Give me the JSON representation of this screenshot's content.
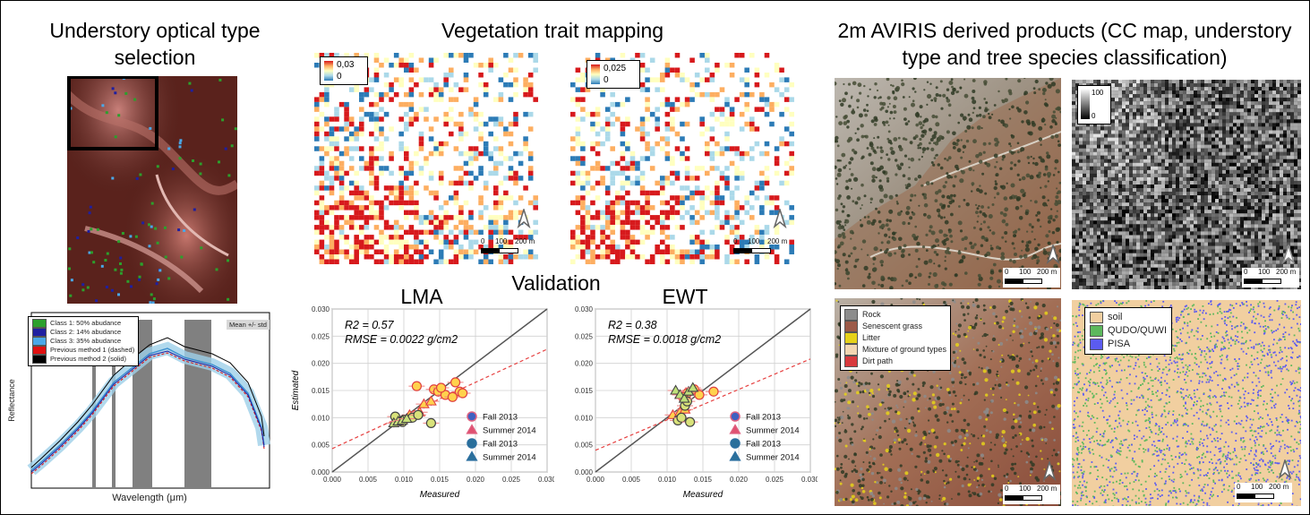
{
  "titles": {
    "understory": "Understory optical type selection",
    "vegetation": "Vegetation trait mapping",
    "aviris": "2m AVIRIS derived products (CC map, understory type and tree species classification)",
    "validation": "Validation"
  },
  "spectral_chart": {
    "legend": [
      {
        "label": "Class 1: 50% abudance",
        "color": "#2ca02c"
      },
      {
        "label": "Class 2: 14% abudance",
        "color": "#1f1fa0"
      },
      {
        "label": "Class 3: 35% abudance",
        "color": "#4aa8e8"
      },
      {
        "label": "Previous method 1 (dashed)",
        "color": "#e01010"
      },
      {
        "label": "Previous method 2 (solid)",
        "color": "#000000"
      }
    ],
    "badge": "Mean +/- std",
    "xlabel": "Wavelength (μm)",
    "ylabel": "Reflectance"
  },
  "trait_maps": {
    "lma_colorbar": {
      "max": "0,03",
      "min": "0"
    },
    "ewt_colorbar": {
      "max": "0,025",
      "min": "0"
    },
    "scale": {
      "t0": "0",
      "t1": "100",
      "t2": "200 m"
    }
  },
  "aviris_maps": {
    "cc_colorbar": {
      "max": "100",
      "min": "0"
    },
    "understory_legend": [
      {
        "label": "Rock",
        "color": "#8c8c8c"
      },
      {
        "label": "Senescent grass",
        "color": "#9c5a48"
      },
      {
        "label": "Litter",
        "color": "#e6d21a"
      },
      {
        "label": "Mixture of ground types",
        "color": "#f2d6b2"
      },
      {
        "label": "Dirt path",
        "color": "#d8393d"
      }
    ],
    "species_legend": [
      {
        "label": "soil",
        "color": "#f1cfa0"
      },
      {
        "label": "QUDO/QUWI",
        "color": "#5cb85c"
      },
      {
        "label": "PISA",
        "color": "#5b5bf0"
      }
    ],
    "scale": {
      "t0": "0",
      "t1": "100",
      "t2": "200 m"
    }
  },
  "chart_data": [
    {
      "type": "scatter",
      "title": "LMA",
      "xlabel": "Measured",
      "ylabel": "Estimated",
      "xlim": [
        0.0,
        0.03
      ],
      "ylim": [
        0.0,
        0.03
      ],
      "ticks": [
        "0.000",
        "0.005",
        "0.010",
        "0.015",
        "0.020",
        "0.025",
        "0.030"
      ],
      "grid": true,
      "legend_position": "lower-right",
      "annotations": [
        "R2 = 0.57",
        "RMSE = 0.0022 g/cm2"
      ],
      "one_to_one_line": true,
      "fit_line": {
        "intercept": 0.0043,
        "slope": 0.61
      },
      "series": [
        {
          "name": "Fall 2013",
          "marker": "circle",
          "color": "#ffd24d",
          "x": [
            0.0118,
            0.0142,
            0.0148,
            0.0172,
            0.0158,
            0.0178,
            0.0182,
            0.0168,
            0.0152
          ],
          "y": [
            0.0158,
            0.0152,
            0.0148,
            0.0165,
            0.0142,
            0.0148,
            0.0145,
            0.0138,
            0.0155
          ]
        },
        {
          "name": "Summer 2014",
          "marker": "triangle",
          "color": "#ffd24d",
          "x": [
            0.0128,
            0.0138,
            0.0108,
            0.0122
          ],
          "y": [
            0.0125,
            0.013,
            0.0105,
            0.011
          ]
        },
        {
          "name": "Fall 2013",
          "marker": "circle",
          "color": "#d9e27a",
          "x": [
            0.0088,
            0.01,
            0.0112,
            0.0138,
            0.012,
            0.0098
          ],
          "y": [
            0.0102,
            0.0096,
            0.01,
            0.009,
            0.0105,
            0.0092
          ]
        },
        {
          "name": "Summer 2014",
          "marker": "triangle",
          "color": "#c8e07a",
          "x": [
            0.0086,
            0.0092,
            0.0098,
            0.0104
          ],
          "y": [
            0.009,
            0.0093,
            0.0095,
            0.0098
          ]
        }
      ]
    },
    {
      "type": "scatter",
      "title": "EWT",
      "xlabel": "Measured",
      "ylabel": "",
      "xlim": [
        0.0,
        0.03
      ],
      "ylim": [
        0.0,
        0.03
      ],
      "ticks": [
        "0.000",
        "0.005",
        "0.010",
        "0.015",
        "0.020",
        "0.025",
        "0.030"
      ],
      "grid": true,
      "legend_position": "lower-right",
      "annotations": [
        "R2 = 0.38",
        "RMSE = 0.0018 g/cm2"
      ],
      "one_to_one_line": true,
      "fit_line": {
        "intercept": 0.004,
        "slope": 0.56
      },
      "series": [
        {
          "name": "Fall 2013",
          "marker": "circle",
          "color": "#ffd24d",
          "x": [
            0.0165,
            0.0138,
            0.0128,
            0.0122,
            0.0145
          ],
          "y": [
            0.0148,
            0.0152,
            0.0145,
            0.0138,
            0.0142
          ]
        },
        {
          "name": "Summer 2014",
          "marker": "triangle",
          "color": "#ffd24d",
          "x": [
            0.0108,
            0.0118,
            0.0125
          ],
          "y": [
            0.0105,
            0.011,
            0.0115
          ]
        },
        {
          "name": "Fall 2013",
          "marker": "circle",
          "color": "#d9e27a",
          "x": [
            0.0115,
            0.012,
            0.0132,
            0.0125,
            0.0128
          ],
          "y": [
            0.0095,
            0.01,
            0.0092,
            0.0122,
            0.013
          ]
        },
        {
          "name": "Summer 2014",
          "marker": "triangle",
          "color": "#bfe07a",
          "x": [
            0.0112,
            0.0118,
            0.0124,
            0.013,
            0.0136
          ],
          "y": [
            0.015,
            0.0142,
            0.0135,
            0.0148,
            0.0155
          ]
        }
      ]
    }
  ]
}
